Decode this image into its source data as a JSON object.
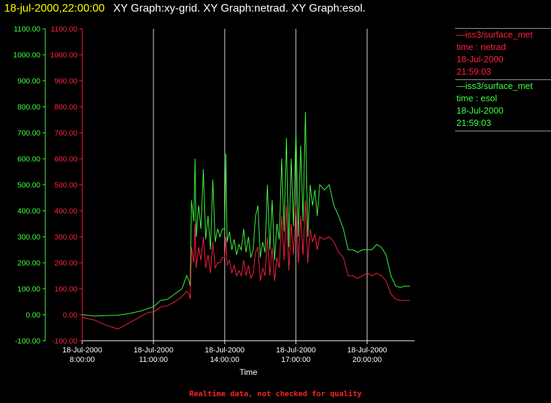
{
  "header": {
    "time": "18-jul-2000,22:00:00",
    "text": "XY Graph:xy-grid.  XY Graph:netrad.  XY Graph:esol."
  },
  "colors": {
    "netrad": "#ff2040",
    "esol": "#40ff40",
    "axis_text": "#ffffff",
    "grid": "#ffffff",
    "title_time": "#ffff00"
  },
  "legend": [
    {
      "series": "netrad",
      "lines": [
        "—iss3/surface_met",
        "time : netrad",
        "18-Jul-2000",
        "21:59:03"
      ]
    },
    {
      "series": "esol",
      "lines": [
        "—iss3/surface_met",
        "time : esol",
        "18-Jul-2000",
        "21:59:03"
      ]
    }
  ],
  "footnote": "Realtime data, not checked for quality",
  "chart_data": {
    "type": "line",
    "xlabel": "Time",
    "ylim": [
      -100,
      1100
    ],
    "yticks": [
      "1100.00",
      "1000.00",
      "900.00",
      "800.00",
      "700.00",
      "600.00",
      "500.00",
      "400.00",
      "300.00",
      "200.00",
      "100.00",
      "0.00",
      "-100.00"
    ],
    "xlim": [
      8,
      22
    ],
    "xticks": [
      {
        "hour": 8,
        "date": "18-Jul-2000",
        "time": "8:00:00"
      },
      {
        "hour": 11,
        "date": "18-Jul-2000",
        "time": "11:00:00"
      },
      {
        "hour": 14,
        "date": "18-Jul-2000",
        "time": "14:00:00"
      },
      {
        "hour": 17,
        "date": "18-Jul-2000",
        "time": "17:00:00"
      },
      {
        "hour": 20,
        "date": "18-Jul-2000",
        "time": "20:00:00"
      }
    ],
    "vertical_grid_hours": [
      11,
      14,
      17,
      20
    ],
    "series": [
      {
        "key": "esol",
        "x": [
          8.0,
          8.5,
          9.0,
          9.5,
          10.0,
          10.5,
          10.8,
          11.0,
          11.3,
          11.6,
          11.9,
          12.2,
          12.4,
          12.5,
          12.55,
          12.6,
          12.7,
          12.75,
          12.8,
          12.9,
          13.0,
          13.1,
          13.2,
          13.3,
          13.4,
          13.5,
          13.6,
          13.7,
          13.8,
          13.9,
          14.0,
          14.05,
          14.1,
          14.2,
          14.3,
          14.4,
          14.5,
          14.6,
          14.7,
          14.8,
          14.9,
          15.0,
          15.1,
          15.2,
          15.3,
          15.4,
          15.5,
          15.6,
          15.7,
          15.8,
          15.9,
          16.0,
          16.1,
          16.2,
          16.3,
          16.4,
          16.5,
          16.6,
          16.7,
          16.8,
          16.9,
          17.0,
          17.1,
          17.2,
          17.3,
          17.4,
          17.5,
          17.6,
          17.7,
          17.8,
          17.9,
          18.0,
          18.2,
          18.4,
          18.6,
          18.8,
          19.0,
          19.2,
          19.4,
          19.6,
          19.8,
          20.0,
          20.2,
          20.4,
          20.6,
          20.8,
          21.0,
          21.2,
          21.4,
          21.6,
          21.8
        ],
        "values": [
          0,
          -5,
          -3,
          -2,
          5,
          15,
          25,
          30,
          55,
          60,
          80,
          100,
          150,
          130,
          110,
          440,
          360,
          600,
          300,
          420,
          330,
          560,
          290,
          380,
          250,
          520,
          280,
          330,
          300,
          330,
          330,
          620,
          280,
          320,
          250,
          290,
          230,
          270,
          250,
          330,
          240,
          300,
          220,
          250,
          380,
          420,
          220,
          280,
          240,
          500,
          250,
          440,
          210,
          350,
          290,
          600,
          320,
          680,
          260,
          600,
          340,
          700,
          300,
          650,
          360,
          780,
          300,
          500,
          420,
          480,
          380,
          500,
          480,
          500,
          420,
          380,
          330,
          250,
          250,
          240,
          250,
          250,
          250,
          270,
          260,
          230,
          150,
          110,
          105,
          110,
          110
        ]
      },
      {
        "key": "netrad",
        "x": [
          8.0,
          8.5,
          9.0,
          9.5,
          10.0,
          10.5,
          10.8,
          11.0,
          11.3,
          11.6,
          11.9,
          12.2,
          12.4,
          12.5,
          12.55,
          12.6,
          12.7,
          12.75,
          12.8,
          12.9,
          13.0,
          13.1,
          13.2,
          13.3,
          13.4,
          13.5,
          13.6,
          13.7,
          13.8,
          13.9,
          14.0,
          14.05,
          14.1,
          14.2,
          14.3,
          14.4,
          14.5,
          14.6,
          14.7,
          14.8,
          14.9,
          15.0,
          15.1,
          15.2,
          15.3,
          15.4,
          15.5,
          15.6,
          15.7,
          15.8,
          15.9,
          16.0,
          16.1,
          16.2,
          16.3,
          16.4,
          16.5,
          16.6,
          16.7,
          16.8,
          16.9,
          17.0,
          17.1,
          17.2,
          17.3,
          17.4,
          17.5,
          17.6,
          17.7,
          17.8,
          17.9,
          18.0,
          18.2,
          18.4,
          18.6,
          18.8,
          19.0,
          19.2,
          19.4,
          19.6,
          19.8,
          20.0,
          20.2,
          20.4,
          20.6,
          20.8,
          21.0,
          21.2,
          21.4,
          21.6,
          21.8
        ],
        "values": [
          -10,
          -20,
          -40,
          -55,
          -30,
          -5,
          10,
          10,
          30,
          35,
          50,
          70,
          90,
          80,
          60,
          260,
          200,
          350,
          180,
          260,
          210,
          300,
          180,
          230,
          160,
          280,
          180,
          200,
          200,
          220,
          220,
          300,
          190,
          210,
          160,
          190,
          150,
          170,
          150,
          210,
          150,
          190,
          140,
          160,
          240,
          260,
          130,
          180,
          150,
          300,
          150,
          260,
          130,
          220,
          180,
          380,
          210,
          420,
          170,
          350,
          230,
          420,
          200,
          380,
          230,
          440,
          200,
          330,
          280,
          310,
          250,
          300,
          290,
          300,
          280,
          240,
          220,
          150,
          150,
          140,
          150,
          160,
          150,
          160,
          150,
          130,
          80,
          60,
          55,
          55,
          55
        ]
      }
    ]
  }
}
